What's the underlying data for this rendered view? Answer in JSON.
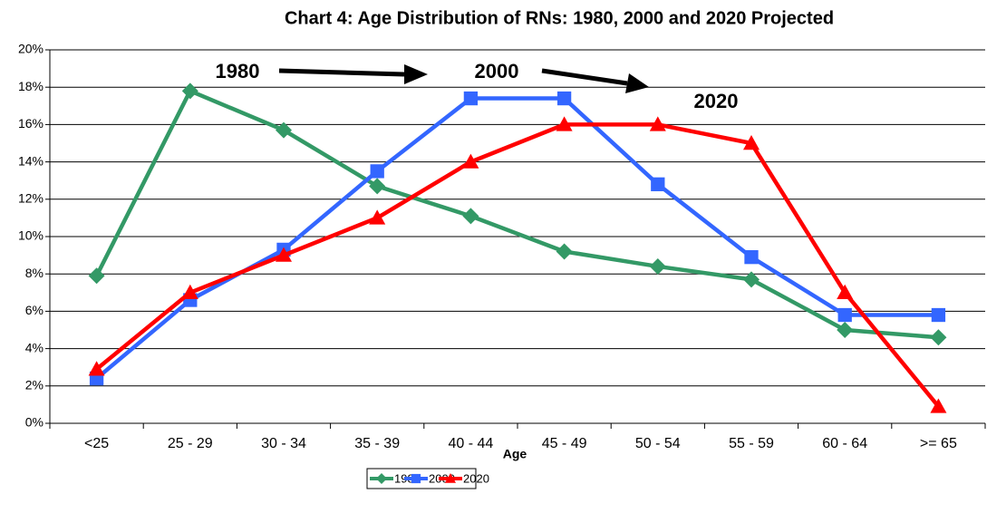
{
  "chart_data": {
    "type": "line",
    "title": "Chart 4:  Age Distribution of RNs: 1980, 2000 and 2020 Projected",
    "x_label": "Age",
    "categories": [
      "<25",
      "25 - 29",
      "30 - 34",
      "35 - 39",
      "40 - 44",
      "45 - 49",
      "50 - 54",
      "55 - 59",
      "60 - 64",
      ">= 65"
    ],
    "series": [
      {
        "name": "1980",
        "color": "#339966",
        "marker": "diamond",
        "values": [
          7.9,
          17.8,
          15.7,
          12.7,
          11.1,
          9.2,
          8.4,
          7.7,
          5.0,
          4.6
        ]
      },
      {
        "name": "2000",
        "color": "#3366ff",
        "marker": "square",
        "values": [
          2.4,
          6.6,
          9.3,
          13.5,
          17.4,
          17.4,
          12.8,
          8.9,
          5.8,
          5.8
        ]
      },
      {
        "name": "2020",
        "color": "#ff0000",
        "marker": "triangle",
        "values": [
          2.9,
          7.0,
          9.0,
          11.0,
          14.0,
          16.0,
          16.0,
          15.0,
          7.0,
          0.9
        ]
      }
    ],
    "annotations": [
      "1980",
      "2000",
      "2020"
    ],
    "ylim": [
      0,
      20
    ],
    "yticks": [
      {
        "value": 0,
        "label": "0%"
      },
      {
        "value": 2,
        "label": "2%"
      },
      {
        "value": 4,
        "label": "4%"
      },
      {
        "value": 6,
        "label": "6%"
      },
      {
        "value": 8,
        "label": "8%"
      },
      {
        "value": 10,
        "label": "10%"
      },
      {
        "value": 12,
        "label": "12%"
      },
      {
        "value": 14,
        "label": "14%"
      },
      {
        "value": 16,
        "label": "16%"
      },
      {
        "value": 18,
        "label": "18%"
      },
      {
        "value": 20,
        "label": "20%"
      }
    ],
    "grid": true,
    "legend": "bottom"
  }
}
